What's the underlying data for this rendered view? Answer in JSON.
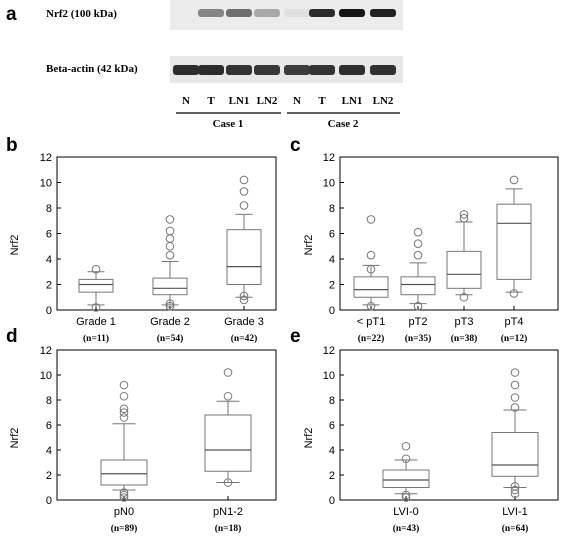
{
  "blot": {
    "letter": "a",
    "rows": [
      {
        "label": "Nrf2 (100 kDa)",
        "intensities": [
          0.0,
          0.45,
          0.55,
          0.3,
          0.05,
          0.85,
          0.95,
          0.9
        ]
      },
      {
        "label": "Beta-actin (42 kDa)",
        "intensities": [
          0.85,
          0.85,
          0.82,
          0.8,
          0.78,
          0.82,
          0.84,
          0.83
        ]
      }
    ],
    "lanes": [
      "N",
      "T",
      "LN1",
      "LN2",
      "N",
      "T",
      "LN1",
      "LN2"
    ],
    "cases": [
      "Case 1",
      "Case 2"
    ]
  },
  "chart_data": [
    {
      "letter": "b",
      "type": "box",
      "ylabel": "Nrf2",
      "ylim": [
        0,
        12
      ],
      "yticks": [
        "0",
        "2",
        "4",
        "6",
        "8",
        "10",
        "12"
      ],
      "categories": [
        {
          "label": "Grade 1",
          "n": "(n=11)",
          "whisker_low": 0.4,
          "q1": 1.4,
          "median": 2.0,
          "q3": 2.4,
          "whisker_high": 3.0,
          "outliers": [
            3.2,
            0.2
          ]
        },
        {
          "label": "Grade 2",
          "n": "(n=54)",
          "whisker_low": 0.4,
          "q1": 1.2,
          "median": 1.7,
          "q3": 2.5,
          "whisker_high": 3.8,
          "outliers": [
            4.3,
            5.0,
            5.6,
            6.2,
            7.1,
            0.3,
            0.5
          ]
        },
        {
          "label": "Grade 3",
          "n": "(n=42)",
          "whisker_low": 1.0,
          "q1": 2.0,
          "median": 3.4,
          "q3": 6.3,
          "whisker_high": 7.5,
          "outliers": [
            8.2,
            9.3,
            10.2,
            0.8,
            1.1
          ]
        }
      ]
    },
    {
      "letter": "c",
      "type": "box",
      "ylabel": "Nrf2",
      "ylim": [
        0,
        12
      ],
      "yticks": [
        "0",
        "2",
        "4",
        "6",
        "8",
        "10",
        "12"
      ],
      "categories": [
        {
          "label": "< pT1",
          "n": "(n=22)",
          "whisker_low": 0.4,
          "q1": 1.0,
          "median": 1.6,
          "q3": 2.6,
          "whisker_high": 3.5,
          "outliers": [
            4.3,
            7.1,
            3.2,
            0.3
          ]
        },
        {
          "label": "pT2",
          "n": "(n=35)",
          "whisker_low": 0.5,
          "q1": 1.2,
          "median": 2.0,
          "q3": 2.6,
          "whisker_high": 3.7,
          "outliers": [
            4.3,
            5.2,
            6.1,
            0.3
          ]
        },
        {
          "label": "pT3",
          "n": "(n=38)",
          "whisker_low": 1.2,
          "q1": 1.7,
          "median": 2.8,
          "q3": 4.6,
          "whisker_high": 6.9,
          "outliers": [
            7.2,
            7.5,
            1.0
          ]
        },
        {
          "label": "pT4",
          "n": "(n=12)",
          "whisker_low": 1.4,
          "q1": 2.4,
          "median": 6.8,
          "q3": 8.3,
          "whisker_high": 9.5,
          "outliers": [
            10.2,
            1.3
          ]
        }
      ]
    },
    {
      "letter": "d",
      "type": "box",
      "ylabel": "Nrf2",
      "ylim": [
        0,
        12
      ],
      "yticks": [
        "0",
        "2",
        "4",
        "6",
        "8",
        "10",
        "12"
      ],
      "categories": [
        {
          "label": "pN0",
          "n": "(n=89)",
          "whisker_low": 0.8,
          "q1": 1.2,
          "median": 2.1,
          "q3": 3.2,
          "whisker_high": 6.1,
          "outliers": [
            6.6,
            7.0,
            7.3,
            8.3,
            9.2,
            0.2,
            0.4,
            0.6
          ]
        },
        {
          "label": "pN1-2",
          "n": "(n=18)",
          "whisker_low": 1.4,
          "q1": 2.3,
          "median": 4.0,
          "q3": 6.8,
          "whisker_high": 7.9,
          "outliers": [
            8.3,
            10.2,
            1.4
          ]
        }
      ]
    },
    {
      "letter": "e",
      "type": "box",
      "ylabel": "Nrf2",
      "ylim": [
        0,
        12
      ],
      "yticks": [
        "0",
        "2",
        "4",
        "6",
        "8",
        "10",
        "12"
      ],
      "categories": [
        {
          "label": "LVI-0",
          "n": "(n=43)",
          "whisker_low": 0.5,
          "q1": 1.0,
          "median": 1.6,
          "q3": 2.4,
          "whisker_high": 3.2,
          "outliers": [
            3.3,
            4.3,
            0.2,
            0.4
          ]
        },
        {
          "label": "LVI-1",
          "n": "(n=64)",
          "whisker_low": 1.0,
          "q1": 1.9,
          "median": 2.8,
          "q3": 5.4,
          "whisker_high": 7.2,
          "outliers": [
            7.4,
            8.2,
            9.2,
            10.2,
            0.5,
            0.8,
            1.1
          ]
        }
      ]
    }
  ]
}
